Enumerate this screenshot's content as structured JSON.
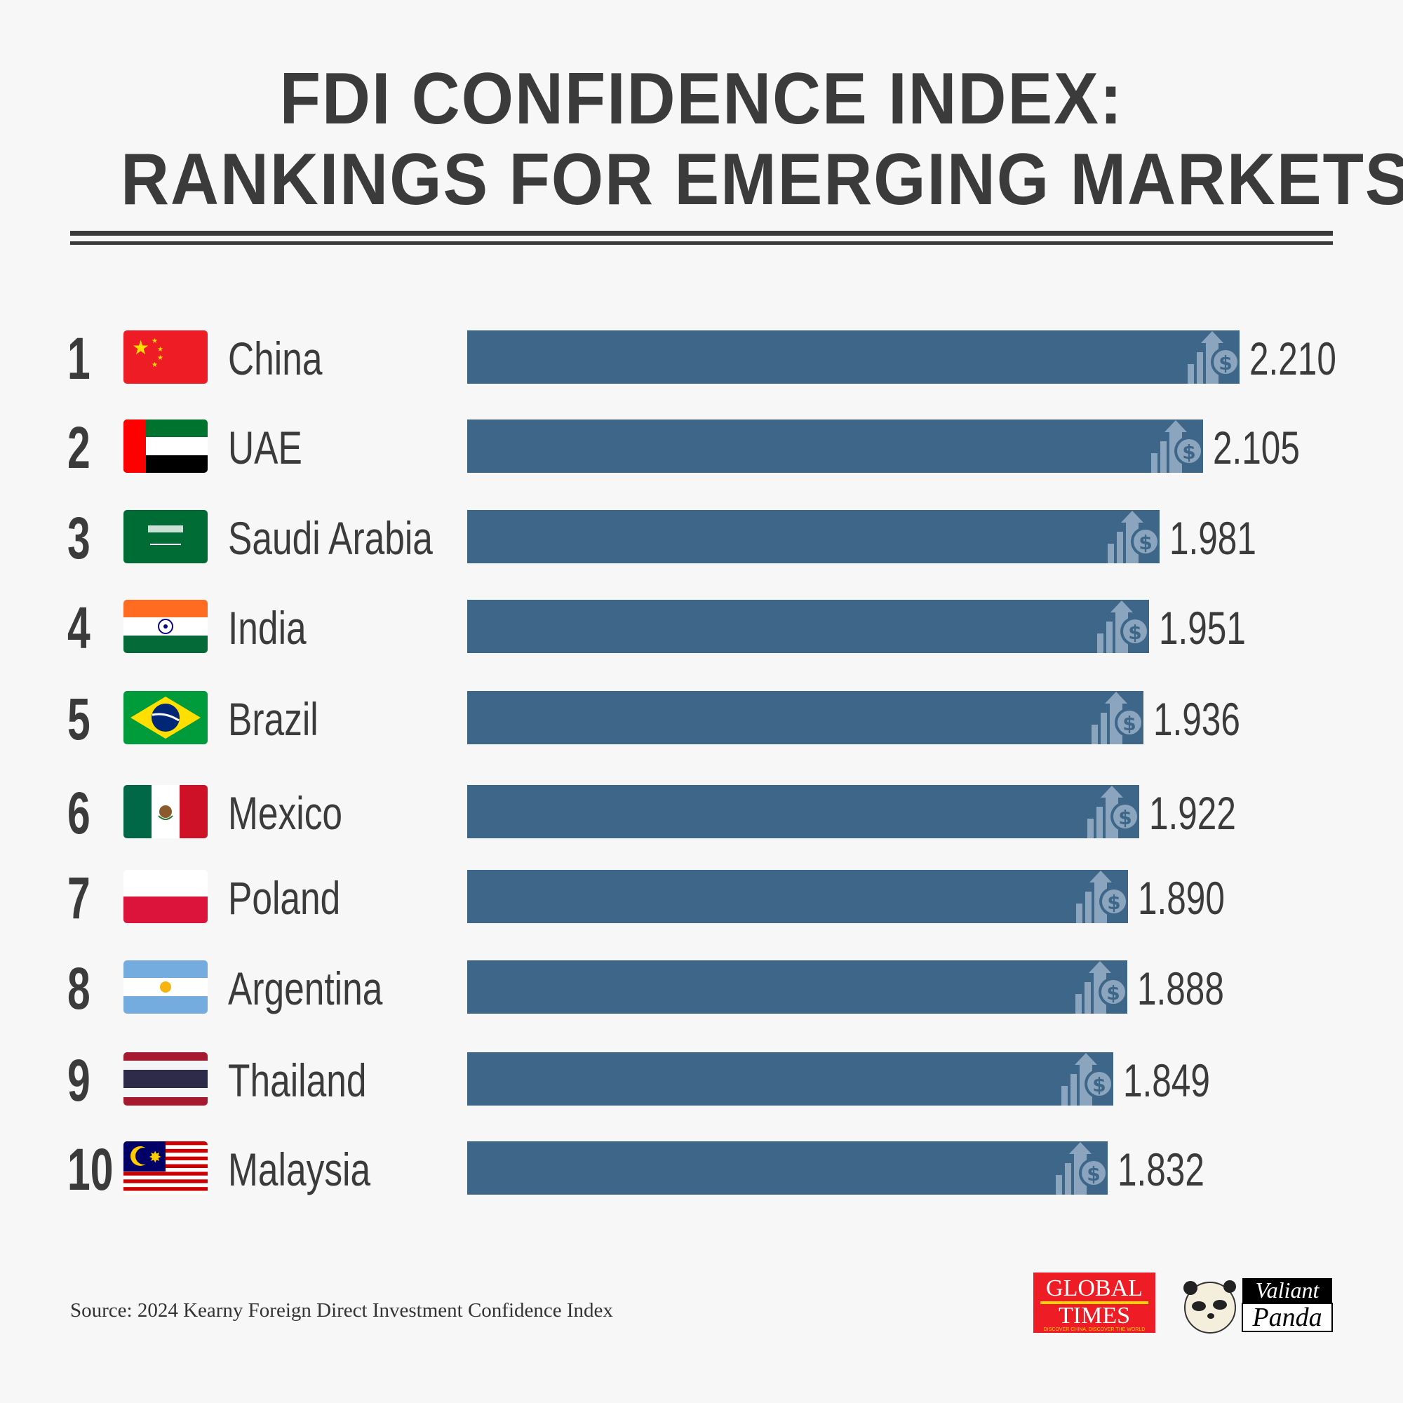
{
  "chart_data": {
    "type": "bar",
    "orientation": "horizontal",
    "title": "FDI CONFIDENCE INDEX: RANKINGS FOR EMERGING MARKETS",
    "title_lines": [
      "FDI CONFIDENCE INDEX:",
      "RANKINGS FOR EMERGING MARKETS"
    ],
    "categories": [
      "China",
      "UAE",
      "Saudi Arabia",
      "India",
      "Brazil",
      "Mexico",
      "Poland",
      "Argentina",
      "Thailand",
      "Malaysia"
    ],
    "ranks": [
      "1",
      "2",
      "3",
      "4",
      "5",
      "6",
      "7",
      "8",
      "9",
      "10"
    ],
    "values": [
      2.21,
      2.105,
      1.981,
      1.951,
      1.936,
      1.922,
      1.89,
      1.888,
      1.849,
      1.832
    ],
    "value_labels": [
      "2.210",
      "2.105",
      "1.981",
      "1.951",
      "1.936",
      "1.922",
      "1.890",
      "1.888",
      "1.849",
      "1.832"
    ],
    "xlim": [
      0,
      2.21
    ],
    "grid": false,
    "bar_color": "#3d6688",
    "bar_icon": "growth-chart-dollar-icon"
  },
  "footer": {
    "source": "Source: 2024 Kearny Foreign Direct Investment Confidence Index",
    "logo_global_times": "GLOBAL TIMES",
    "logo_global_times_tagline": "DISCOVER CHINA, DISCOVER THE WORLD",
    "logo_valiant_panda": "Valiant Panda"
  }
}
